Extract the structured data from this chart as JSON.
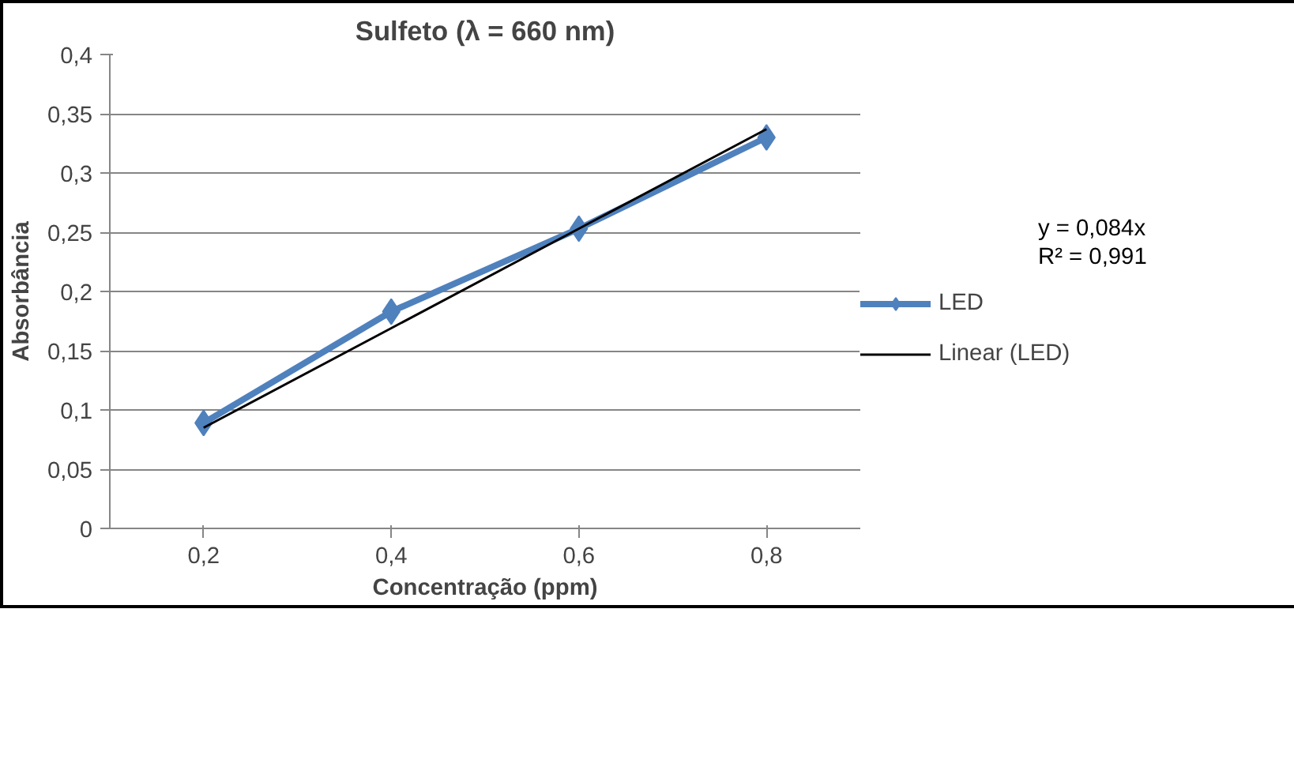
{
  "chart_data": {
    "type": "line",
    "title": "Sulfeto (λ = 660 nm)",
    "xlabel": "Concentração (ppm)",
    "ylabel": "Absorbância",
    "categories": [
      "0,2",
      "0,4",
      "0,6",
      "0,8"
    ],
    "series": [
      {
        "name": "LED",
        "color": "#4f81bd",
        "values": [
          0.089,
          0.183,
          0.253,
          0.33
        ],
        "marker": "diamond"
      },
      {
        "name": "Linear (LED)",
        "color": "#000000",
        "values": [
          0.085,
          0.169,
          0.253,
          0.337
        ],
        "marker": "none"
      }
    ],
    "ylim": [
      0,
      0.4
    ],
    "yticks": [
      {
        "value": 0,
        "label": "0"
      },
      {
        "value": 0.05,
        "label": "0,05"
      },
      {
        "value": 0.1,
        "label": "0,1"
      },
      {
        "value": 0.15,
        "label": "0,15"
      },
      {
        "value": 0.2,
        "label": "0,2"
      },
      {
        "value": 0.25,
        "label": "0,25"
      },
      {
        "value": 0.3,
        "label": "0,3"
      },
      {
        "value": 0.35,
        "label": "0,35"
      },
      {
        "value": 0.4,
        "label": "0,4"
      }
    ],
    "annotations": [
      "y = 0,084x",
      "R² = 0,991"
    ],
    "grid": "y",
    "legend": "right"
  }
}
